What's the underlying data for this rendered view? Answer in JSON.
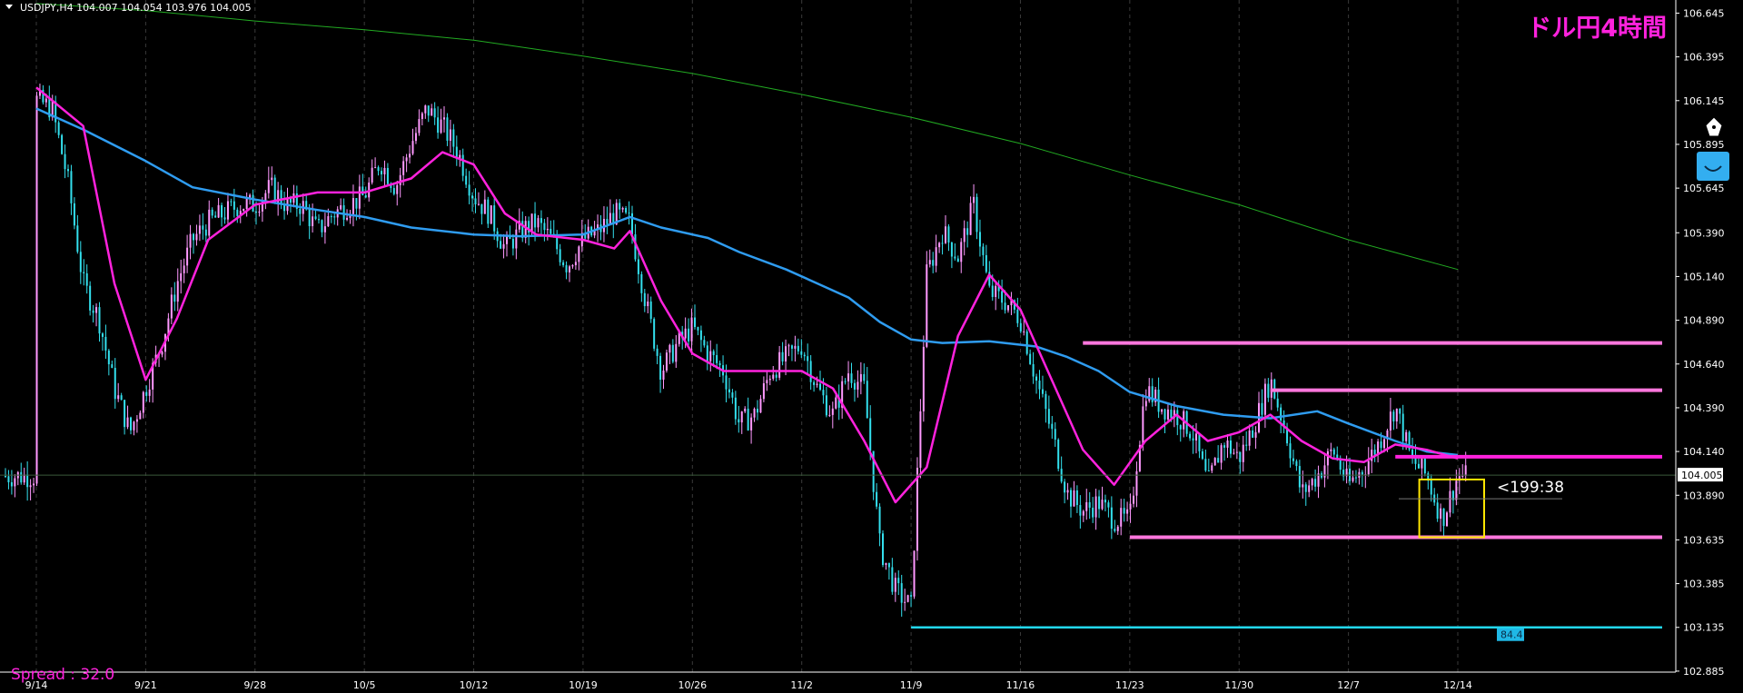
{
  "header": {
    "symbol_info": "USDJPY,H4  104.007 104.054 103.976 104.005",
    "title": "ドル円4時間"
  },
  "spread_label": "Spread : 32.0",
  "countdown_label": "<199:38",
  "current_price_label": "104.005",
  "level_badge": "84.4",
  "colors": {
    "background": "#000000",
    "bull_candle": "#ff99ff",
    "bear_candle": "#33e0ee",
    "ma_fast": "#ff22dd",
    "ma_mid": "#2f9cf0",
    "ma_slow": "#22aa22",
    "sr_line": "#ff77dd",
    "support_line": "#22d8f0",
    "box": "#ffe600",
    "title": "#ff22dd"
  },
  "icons": [
    "pen-nib-icon",
    "smile-badge-icon"
  ],
  "chart_data": {
    "type": "candlestick",
    "symbol": "USDJPY",
    "timeframe": "H4",
    "ylim": [
      102.76,
      106.72
    ],
    "y_ticks": [
      "106.645",
      "106.395",
      "106.145",
      "105.895",
      "105.645",
      "105.390",
      "105.140",
      "104.890",
      "104.640",
      "104.390",
      "104.140",
      "103.890",
      "103.635",
      "103.385",
      "103.135",
      "102.885"
    ],
    "x_ticks": [
      "9/14",
      "9/21",
      "9/28",
      "10/5",
      "10/12",
      "10/19",
      "10/26",
      "11/2",
      "11/9",
      "11/16",
      "11/23",
      "11/30",
      "12/7",
      "12/14"
    ],
    "current_price": 104.005,
    "horizontal_levels": [
      {
        "from": "11/20",
        "price": 104.76,
        "color": "#ff77dd"
      },
      {
        "from": "12/2",
        "price": 104.49,
        "color": "#ff77dd"
      },
      {
        "from": "12/10",
        "price": 104.11,
        "color": "#ff22dd"
      },
      {
        "from": "11/23",
        "price": 103.65,
        "color": "#ff77dd"
      },
      {
        "from": "11/9",
        "price": 103.135,
        "color": "#22d8f0"
      }
    ],
    "path": [
      [
        "9/14",
        106.15
      ],
      [
        "9/15",
        106.1
      ],
      [
        "9/16",
        105.7
      ],
      [
        "9/17",
        105.1
      ],
      [
        "9/18",
        104.9
      ],
      [
        "9/19",
        104.5
      ],
      [
        "9/20",
        104.25
      ],
      [
        "9/21",
        104.5
      ],
      [
        "9/22",
        104.75
      ],
      [
        "9/23",
        105.1
      ],
      [
        "9/24",
        105.35
      ],
      [
        "9/25",
        105.45
      ],
      [
        "9/27",
        105.55
      ],
      [
        "9/28",
        105.55
      ],
      [
        "9/29",
        105.65
      ],
      [
        "9/30",
        105.55
      ],
      [
        "10/1",
        105.55
      ],
      [
        "10/2",
        105.4
      ],
      [
        "10/3",
        105.5
      ],
      [
        "10/5",
        105.6
      ],
      [
        "10/6",
        105.8
      ],
      [
        "10/7",
        105.65
      ],
      [
        "10/8",
        105.9
      ],
      [
        "10/9",
        106.1
      ],
      [
        "10/10",
        106.0
      ],
      [
        "10/11",
        105.85
      ],
      [
        "10/12",
        105.6
      ],
      [
        "10/13",
        105.5
      ],
      [
        "10/14",
        105.3
      ],
      [
        "10/15",
        105.4
      ],
      [
        "10/16",
        105.45
      ],
      [
        "10/17",
        105.35
      ],
      [
        "10/18",
        105.2
      ],
      [
        "10/19",
        105.35
      ],
      [
        "10/20",
        105.4
      ],
      [
        "10/21",
        105.5
      ],
      [
        "10/22",
        105.45
      ],
      [
        "10/23",
        105.0
      ],
      [
        "10/24",
        104.6
      ],
      [
        "10/25",
        104.75
      ],
      [
        "10/26",
        104.85
      ],
      [
        "10/27",
        104.7
      ],
      [
        "10/28",
        104.6
      ],
      [
        "10/29",
        104.3
      ],
      [
        "10/30",
        104.35
      ],
      [
        "10/31",
        104.6
      ],
      [
        "11/2",
        104.75
      ],
      [
        "11/3",
        104.5
      ],
      [
        "11/4",
        104.35
      ],
      [
        "11/5",
        104.6
      ],
      [
        "11/6",
        104.5
      ],
      [
        "11/7",
        103.6
      ],
      [
        "11/8",
        103.35
      ],
      [
        "11/9",
        103.25
      ],
      [
        "11/10",
        105.15
      ],
      [
        "11/11",
        105.4
      ],
      [
        "11/12",
        105.25
      ],
      [
        "11/13",
        105.55
      ],
      [
        "11/14",
        105.05
      ],
      [
        "11/15",
        105.0
      ],
      [
        "11/16",
        104.9
      ],
      [
        "11/17",
        104.55
      ],
      [
        "11/18",
        104.25
      ],
      [
        "11/19",
        103.9
      ],
      [
        "11/20",
        103.8
      ],
      [
        "11/21",
        103.85
      ],
      [
        "11/22",
        103.75
      ],
      [
        "11/23",
        103.75
      ],
      [
        "11/24",
        104.5
      ],
      [
        "11/25",
        104.4
      ],
      [
        "11/26",
        104.35
      ],
      [
        "11/27",
        104.25
      ],
      [
        "11/28",
        103.95
      ],
      [
        "11/29",
        104.2
      ],
      [
        "11/30",
        104.1
      ],
      [
        "12/1",
        104.3
      ],
      [
        "12/2",
        104.55
      ],
      [
        "12/3",
        104.25
      ],
      [
        "12/4",
        103.9
      ],
      [
        "12/5",
        104.0
      ],
      [
        "12/6",
        104.15
      ],
      [
        "12/7",
        103.95
      ],
      [
        "12/8",
        104.05
      ],
      [
        "12/9",
        104.2
      ],
      [
        "12/10",
        104.4
      ],
      [
        "12/11",
        104.1
      ],
      [
        "12/12",
        104.0
      ],
      [
        "12/13",
        103.75
      ],
      [
        "12/14",
        104.0
      ]
    ],
    "ma_fast": [
      [
        "9/14",
        106.22
      ],
      [
        "9/17",
        106.0
      ],
      [
        "9/19",
        105.1
      ],
      [
        "9/21",
        104.55
      ],
      [
        "9/23",
        104.9
      ],
      [
        "9/25",
        105.35
      ],
      [
        "9/28",
        105.55
      ],
      [
        "10/2",
        105.62
      ],
      [
        "10/5",
        105.62
      ],
      [
        "10/8",
        105.7
      ],
      [
        "10/10",
        105.85
      ],
      [
        "10/12",
        105.78
      ],
      [
        "10/14",
        105.5
      ],
      [
        "10/16",
        105.38
      ],
      [
        "10/19",
        105.35
      ],
      [
        "10/21",
        105.3
      ],
      [
        "10/22",
        105.4
      ],
      [
        "10/24",
        105.0
      ],
      [
        "10/26",
        104.7
      ],
      [
        "10/28",
        104.6
      ],
      [
        "11/2",
        104.6
      ],
      [
        "11/4",
        104.5
      ],
      [
        "11/6",
        104.2
      ],
      [
        "11/8",
        103.85
      ],
      [
        "11/10",
        104.05
      ],
      [
        "11/12",
        104.8
      ],
      [
        "11/14",
        105.15
      ],
      [
        "11/16",
        104.95
      ],
      [
        "11/18",
        104.55
      ],
      [
        "11/20",
        104.15
      ],
      [
        "11/22",
        103.95
      ],
      [
        "11/24",
        104.2
      ],
      [
        "11/26",
        104.35
      ],
      [
        "11/28",
        104.2
      ],
      [
        "11/30",
        104.25
      ],
      [
        "12/2",
        104.35
      ],
      [
        "12/4",
        104.2
      ],
      [
        "12/6",
        104.1
      ],
      [
        "12/8",
        104.08
      ],
      [
        "12/10",
        104.18
      ],
      [
        "12/12",
        104.15
      ],
      [
        "12/14",
        104.1
      ]
    ],
    "ma_mid": [
      [
        "9/14",
        106.1
      ],
      [
        "9/17",
        105.98
      ],
      [
        "9/21",
        105.8
      ],
      [
        "9/24",
        105.65
      ],
      [
        "9/28",
        105.58
      ],
      [
        "10/2",
        105.52
      ],
      [
        "10/5",
        105.48
      ],
      [
        "10/8",
        105.42
      ],
      [
        "10/12",
        105.38
      ],
      [
        "10/15",
        105.37
      ],
      [
        "10/19",
        105.38
      ],
      [
        "10/22",
        105.48
      ],
      [
        "10/24",
        105.42
      ],
      [
        "10/27",
        105.36
      ],
      [
        "10/29",
        105.28
      ],
      [
        "11/1",
        105.18
      ],
      [
        "11/3",
        105.1
      ],
      [
        "11/5",
        105.02
      ],
      [
        "11/7",
        104.88
      ],
      [
        "11/9",
        104.78
      ],
      [
        "11/11",
        104.76
      ],
      [
        "11/14",
        104.77
      ],
      [
        "11/17",
        104.74
      ],
      [
        "11/19",
        104.68
      ],
      [
        "11/21",
        104.6
      ],
      [
        "11/23",
        104.48
      ],
      [
        "11/26",
        104.4
      ],
      [
        "11/29",
        104.35
      ],
      [
        "12/2",
        104.33
      ],
      [
        "12/5",
        104.37
      ],
      [
        "12/7",
        104.3
      ],
      [
        "12/10",
        104.2
      ],
      [
        "12/12",
        104.14
      ],
      [
        "12/14",
        104.12
      ]
    ],
    "ma_slow": [
      [
        "9/14",
        106.7
      ],
      [
        "9/21",
        106.66
      ],
      [
        "9/28",
        106.6
      ],
      [
        "10/5",
        106.55
      ],
      [
        "10/12",
        106.49
      ],
      [
        "10/19",
        106.4
      ],
      [
        "10/26",
        106.3
      ],
      [
        "11/2",
        106.18
      ],
      [
        "11/9",
        106.05
      ],
      [
        "11/16",
        105.9
      ],
      [
        "11/23",
        105.72
      ],
      [
        "11/30",
        105.55
      ],
      [
        "12/7",
        105.35
      ],
      [
        "12/14",
        105.18
      ]
    ]
  }
}
